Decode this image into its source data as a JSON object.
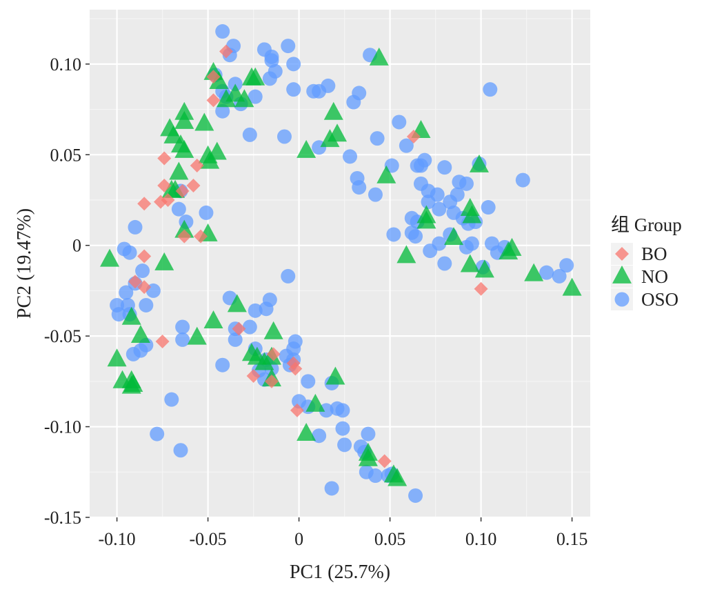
{
  "chart_data": {
    "type": "scatter",
    "xlabel": "PC1 (25.7%)",
    "ylabel": "PC2 (19.47%)",
    "xlim": [
      -0.115,
      0.16
    ],
    "ylim": [
      -0.15,
      0.13
    ],
    "x_ticks": [
      -0.1,
      -0.05,
      0,
      0.05,
      0.1,
      0.15
    ],
    "x_tick_labels": [
      "-0.10",
      "-0.05",
      "0",
      "0.05",
      "0.10",
      "0.15"
    ],
    "y_ticks": [
      -0.15,
      -0.1,
      -0.05,
      0,
      0.05,
      0.1
    ],
    "y_tick_labels": [
      "-0.15",
      "-0.10",
      "-0.05",
      "0",
      "0.05",
      "0.10"
    ],
    "grid": true,
    "legend_title": "组 Group",
    "legend_position": "right",
    "series": [
      {
        "name": "BO",
        "marker": "diamond",
        "color": "#F8766D",
        "points": [
          [
            -0.04,
            0.107
          ],
          [
            -0.047,
            0.093
          ],
          [
            -0.047,
            0.08
          ],
          [
            -0.074,
            0.048
          ],
          [
            -0.056,
            0.044
          ],
          [
            -0.074,
            0.033
          ],
          [
            -0.058,
            0.033
          ],
          [
            -0.072,
            0.025
          ],
          [
            -0.085,
            0.023
          ],
          [
            -0.076,
            0.024
          ],
          [
            -0.064,
            0.03
          ],
          [
            -0.063,
            0.005
          ],
          [
            -0.054,
            0.005
          ],
          [
            -0.085,
            -0.006
          ],
          [
            -0.09,
            -0.02
          ],
          [
            -0.085,
            -0.023
          ],
          [
            -0.075,
            -0.053
          ],
          [
            -0.033,
            -0.046
          ],
          [
            -0.025,
            -0.072
          ],
          [
            -0.014,
            -0.06
          ],
          [
            -0.015,
            -0.075
          ],
          [
            -0.003,
            -0.065
          ],
          [
            -0.002,
            -0.068
          ],
          [
            -0.001,
            -0.091
          ],
          [
            0.047,
            -0.119
          ],
          [
            0.063,
            0.06
          ],
          [
            0.1,
            -0.024
          ]
        ]
      },
      {
        "name": "NO",
        "marker": "triangle",
        "color": "#00BA38",
        "points": [
          [
            -0.047,
            0.095
          ],
          [
            -0.044,
            0.09
          ],
          [
            -0.035,
            0.083
          ],
          [
            -0.04,
            0.08
          ],
          [
            -0.03,
            0.08
          ],
          [
            -0.024,
            0.092
          ],
          [
            -0.026,
            0.092
          ],
          [
            -0.063,
            0.073
          ],
          [
            -0.063,
            0.068
          ],
          [
            -0.052,
            0.067
          ],
          [
            -0.071,
            0.064
          ],
          [
            -0.069,
            0.06
          ],
          [
            -0.065,
            0.055
          ],
          [
            -0.063,
            0.052
          ],
          [
            -0.05,
            0.049
          ],
          [
            -0.045,
            0.051
          ],
          [
            -0.049,
            0.046
          ],
          [
            -0.066,
            0.04
          ],
          [
            -0.07,
            0.03
          ],
          [
            -0.068,
            0.03
          ],
          [
            -0.063,
            0.008
          ],
          [
            -0.05,
            0.006
          ],
          [
            -0.104,
            -0.008
          ],
          [
            -0.074,
            -0.01
          ],
          [
            -0.034,
            -0.033
          ],
          [
            -0.047,
            -0.042
          ],
          [
            -0.092,
            -0.04
          ],
          [
            -0.087,
            -0.05
          ],
          [
            -0.056,
            -0.051
          ],
          [
            -0.014,
            -0.048
          ],
          [
            -0.023,
            -0.062
          ],
          [
            -0.026,
            -0.06
          ],
          [
            -0.019,
            -0.065
          ],
          [
            -0.015,
            -0.062
          ],
          [
            -0.015,
            -0.074
          ],
          [
            -0.1,
            -0.063
          ],
          [
            -0.097,
            -0.075
          ],
          [
            -0.091,
            -0.077
          ],
          [
            -0.092,
            -0.075
          ],
          [
            -0.092,
            -0.078
          ],
          [
            0.009,
            -0.088
          ],
          [
            0.004,
            -0.104
          ],
          [
            0.02,
            -0.073
          ],
          [
            0.038,
            -0.115
          ],
          [
            0.038,
            -0.118
          ],
          [
            0.052,
            -0.127
          ],
          [
            0.054,
            -0.129
          ],
          [
            0.044,
            0.103
          ],
          [
            0.019,
            0.073
          ],
          [
            0.021,
            0.061
          ],
          [
            0.017,
            0.058
          ],
          [
            0.004,
            0.052
          ],
          [
            0.048,
            0.038
          ],
          [
            0.067,
            0.063
          ],
          [
            0.099,
            0.044
          ],
          [
            0.07,
            0.013
          ],
          [
            0.07,
            0.016
          ],
          [
            0.085,
            0.004
          ],
          [
            0.094,
            0.02
          ],
          [
            0.095,
            0.016
          ],
          [
            0.094,
            -0.011
          ],
          [
            0.102,
            -0.014
          ],
          [
            0.117,
            -0.002
          ],
          [
            0.115,
            -0.004
          ],
          [
            0.129,
            -0.016
          ],
          [
            0.15,
            -0.024
          ],
          [
            0.059,
            -0.006
          ]
        ]
      },
      {
        "name": "OSO",
        "marker": "circle",
        "color": "#619CFF",
        "points": [
          [
            -0.042,
            0.118
          ],
          [
            -0.036,
            0.11
          ],
          [
            -0.038,
            0.105
          ],
          [
            -0.019,
            0.108
          ],
          [
            -0.015,
            0.104
          ],
          [
            -0.015,
            0.102
          ],
          [
            -0.006,
            0.11
          ],
          [
            -0.003,
            0.1
          ],
          [
            -0.046,
            0.094
          ],
          [
            -0.013,
            0.096
          ],
          [
            -0.016,
            0.092
          ],
          [
            -0.035,
            0.089
          ],
          [
            -0.042,
            0.085
          ],
          [
            -0.04,
            0.082
          ],
          [
            -0.024,
            0.082
          ],
          [
            -0.032,
            0.078
          ],
          [
            -0.042,
            0.074
          ],
          [
            -0.003,
            0.086
          ],
          [
            0.008,
            0.085
          ],
          [
            0.011,
            0.085
          ],
          [
            0.016,
            0.088
          ],
          [
            0.03,
            0.079
          ],
          [
            0.033,
            0.084
          ],
          [
            0.039,
            0.105
          ],
          [
            0.105,
            0.086
          ],
          [
            -0.027,
            0.061
          ],
          [
            -0.008,
            0.06
          ],
          [
            0.011,
            0.054
          ],
          [
            0.043,
            0.059
          ],
          [
            0.055,
            0.068
          ],
          [
            0.059,
            0.055
          ],
          [
            0.028,
            0.049
          ],
          [
            0.032,
            0.037
          ],
          [
            0.033,
            0.032
          ],
          [
            0.042,
            0.028
          ],
          [
            0.051,
            0.044
          ],
          [
            0.065,
            0.044
          ],
          [
            0.067,
            0.044
          ],
          [
            0.069,
            0.047
          ],
          [
            0.08,
            0.043
          ],
          [
            0.067,
            0.034
          ],
          [
            0.071,
            0.03
          ],
          [
            0.071,
            0.024
          ],
          [
            0.076,
            0.028
          ],
          [
            0.077,
            0.02
          ],
          [
            0.083,
            0.024
          ],
          [
            0.085,
            0.018
          ],
          [
            0.087,
            0.028
          ],
          [
            0.088,
            0.035
          ],
          [
            0.092,
            0.034
          ],
          [
            0.09,
            0.015
          ],
          [
            0.093,
            0.012
          ],
          [
            0.097,
            0.013
          ],
          [
            0.099,
            0.045
          ],
          [
            0.104,
            0.021
          ],
          [
            0.123,
            0.036
          ],
          [
            0.062,
            0.015
          ],
          [
            0.065,
            0.013
          ],
          [
            0.062,
            0.007
          ],
          [
            0.064,
            0.005
          ],
          [
            0.052,
            0.006
          ],
          [
            0.072,
            -0.003
          ],
          [
            0.077,
            0.001
          ],
          [
            0.083,
            0.006
          ],
          [
            0.092,
            -0.001
          ],
          [
            0.095,
            0.001
          ],
          [
            0.08,
            -0.01
          ],
          [
            0.101,
            -0.012
          ],
          [
            0.106,
            0.001
          ],
          [
            0.109,
            -0.004
          ],
          [
            0.113,
            -0.001
          ],
          [
            0.136,
            -0.015
          ],
          [
            0.143,
            -0.017
          ],
          [
            0.147,
            -0.011
          ],
          [
            -0.09,
            0.01
          ],
          [
            -0.065,
            0.03
          ],
          [
            -0.066,
            0.02
          ],
          [
            -0.062,
            0.013
          ],
          [
            -0.051,
            0.018
          ],
          [
            -0.096,
            -0.002
          ],
          [
            -0.093,
            -0.004
          ],
          [
            -0.086,
            -0.014
          ],
          [
            -0.09,
            -0.021
          ],
          [
            -0.095,
            -0.026
          ],
          [
            -0.08,
            -0.025
          ],
          [
            -0.1,
            -0.033
          ],
          [
            -0.094,
            -0.033
          ],
          [
            -0.084,
            -0.033
          ],
          [
            -0.093,
            -0.038
          ],
          [
            -0.099,
            -0.038
          ],
          [
            -0.064,
            -0.045
          ],
          [
            -0.064,
            -0.052
          ],
          [
            -0.084,
            -0.055
          ],
          [
            -0.087,
            -0.058
          ],
          [
            -0.091,
            -0.06
          ],
          [
            -0.038,
            -0.029
          ],
          [
            -0.035,
            -0.046
          ],
          [
            -0.035,
            -0.052
          ],
          [
            -0.027,
            -0.045
          ],
          [
            -0.016,
            -0.03
          ],
          [
            -0.018,
            -0.035
          ],
          [
            -0.024,
            -0.036
          ],
          [
            -0.006,
            -0.017
          ],
          [
            -0.024,
            -0.057
          ],
          [
            -0.022,
            -0.069
          ],
          [
            -0.018,
            -0.063
          ],
          [
            -0.015,
            -0.068
          ],
          [
            -0.019,
            -0.074
          ],
          [
            -0.002,
            -0.053
          ],
          [
            -0.003,
            -0.057
          ],
          [
            -0.003,
            -0.063
          ],
          [
            -0.007,
            -0.061
          ],
          [
            -0.005,
            -0.066
          ],
          [
            -0.042,
            -0.066
          ],
          [
            0.005,
            -0.075
          ],
          [
            0.018,
            -0.076
          ],
          [
            0.0,
            -0.086
          ],
          [
            0.005,
            -0.089
          ],
          [
            0.015,
            -0.091
          ],
          [
            0.021,
            -0.09
          ],
          [
            0.024,
            -0.091
          ],
          [
            0.011,
            -0.105
          ],
          [
            0.024,
            -0.101
          ],
          [
            0.025,
            -0.11
          ],
          [
            0.034,
            -0.111
          ],
          [
            0.038,
            -0.104
          ],
          [
            0.036,
            -0.114
          ],
          [
            0.037,
            -0.125
          ],
          [
            0.042,
            -0.127
          ],
          [
            0.049,
            -0.127
          ],
          [
            0.051,
            -0.126
          ],
          [
            0.064,
            -0.138
          ],
          [
            0.018,
            -0.134
          ],
          [
            -0.07,
            -0.085
          ],
          [
            -0.078,
            -0.104
          ],
          [
            -0.065,
            -0.113
          ]
        ]
      }
    ]
  }
}
